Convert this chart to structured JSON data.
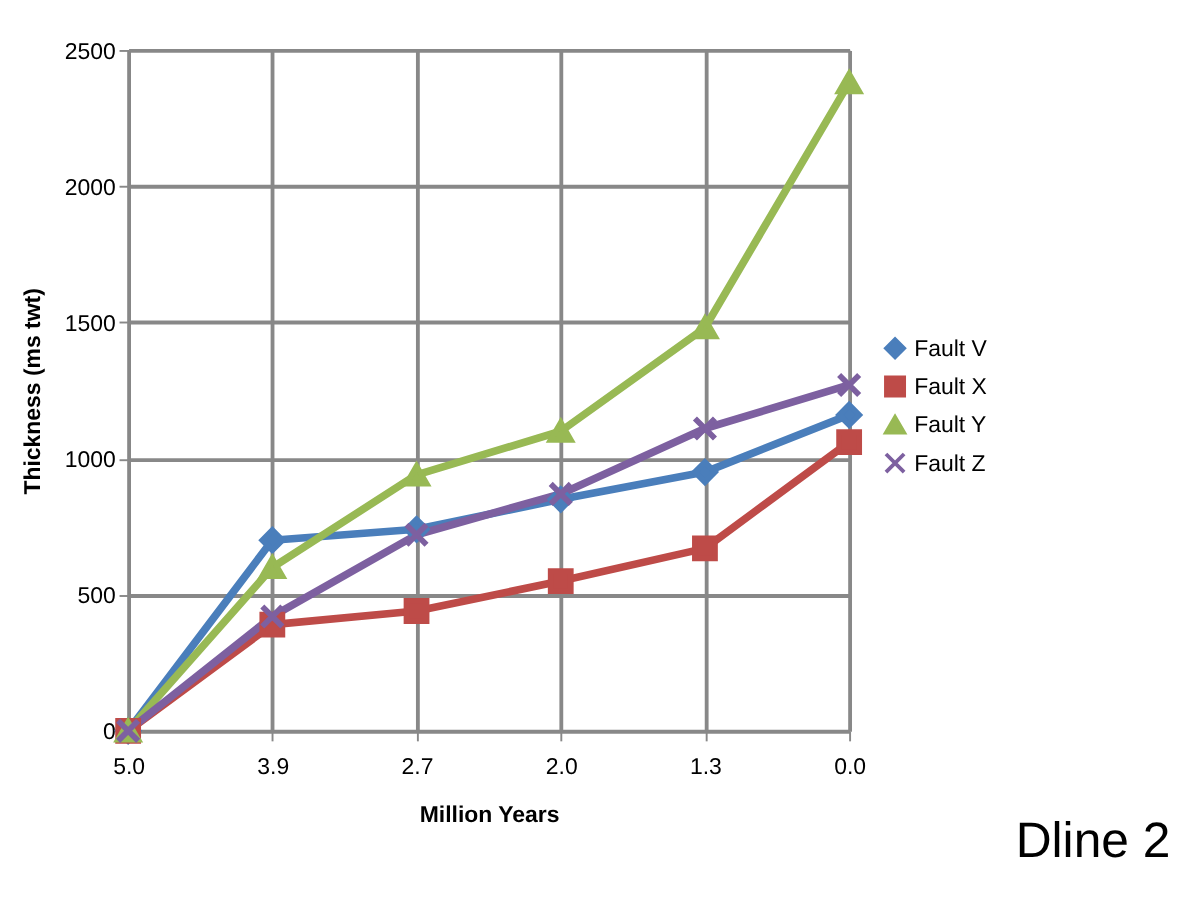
{
  "chart_data": {
    "type": "line",
    "xlabel": "Million Years",
    "ylabel": "Thickness  (ms twt)",
    "categories": [
      "5.0",
      "3.9",
      "2.7",
      "2.0",
      "1.3",
      "0.0"
    ],
    "series": [
      {
        "name": "Fault V",
        "color": "#4a7ebb",
        "marker": "diamond",
        "values": [
          0,
          700,
          740,
          850,
          950,
          1160
        ]
      },
      {
        "name": "Fault X",
        "color": "#be4b48",
        "marker": "square",
        "values": [
          0,
          390,
          440,
          550,
          670,
          1060
        ]
      },
      {
        "name": "Fault Y",
        "color": "#98b954",
        "marker": "triangle",
        "values": [
          0,
          600,
          940,
          1100,
          1480,
          2380
        ]
      },
      {
        "name": "Fault Z",
        "color": "#7d60a0",
        "marker": "cross",
        "values": [
          0,
          420,
          720,
          870,
          1110,
          1270
        ]
      }
    ],
    "ylim": [
      0,
      2500
    ],
    "yticks": [
      0,
      500,
      1000,
      1500,
      2000,
      2500
    ],
    "grid": true,
    "legend": "right",
    "line_style": "solid",
    "annotations": [
      "Dline 2"
    ]
  }
}
